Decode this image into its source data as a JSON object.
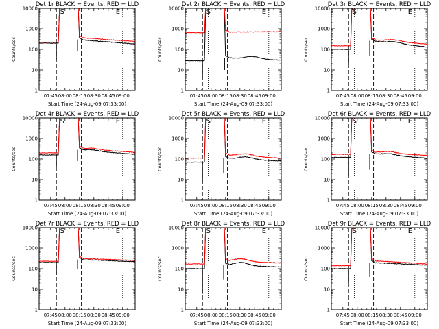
{
  "figure": {
    "start_time_label": "Start Time (24-Aug-09 07:33:00)",
    "time_ticks": [
      "07:45",
      "08:00",
      "08:15",
      "08:30",
      "08:45",
      "09:00"
    ],
    "y_ticks": [
      "1",
      "10",
      "100",
      "1000",
      "10000"
    ],
    "ylabel": "Counts/sec",
    "event_markers": {
      "start": "S",
      "end": "E"
    }
  },
  "colors": {
    "events": "#000000",
    "lld": "#ff0000",
    "axis": "#000000"
  },
  "chart_data": [
    {
      "type": "line",
      "title": "Det 1r BLACK = Events, RED = LLD",
      "xlabel": "Start Time (24-Aug-09 07:33:00)",
      "ylabel": "Counts/sec",
      "x_range_min": [
        0,
        100
      ],
      "ylim": [
        1,
        10000
      ],
      "yscale": "log",
      "eclipse_min": [
        20,
        40
      ],
      "dashed_min": [
        18,
        44
      ],
      "dotted_min": [
        24,
        87
      ],
      "series": [
        {
          "name": "Events",
          "pre": 200,
          "post_start": 300,
          "post_end": 180,
          "bumps": [],
          "spikes": [
            {
              "t": 18,
              "v": 30
            },
            {
              "t": 40,
              "v": 80
            }
          ]
        },
        {
          "name": "LLD",
          "pre": 220,
          "post_start": 380,
          "post_end": 240,
          "bumps": [],
          "spikes": []
        }
      ]
    },
    {
      "type": "line",
      "title": "Det 2r BLACK = Events, RED = LLD",
      "xlabel": "Start Time (24-Aug-09 07:33:00)",
      "ylabel": "Counts/sec",
      "x_range_min": [
        0,
        100
      ],
      "ylim": [
        1,
        10000
      ],
      "yscale": "log",
      "eclipse_min": [
        20,
        40
      ],
      "dashed_min": [
        18,
        44
      ],
      "dotted_min": [
        24,
        87
      ],
      "series": [
        {
          "name": "Events",
          "pre": 28,
          "post_start": 40,
          "post_end": 30,
          "bumps": [
            {
              "t": 70,
              "v": 10
            }
          ],
          "spikes": [
            {
              "t": 18,
              "v": 4
            },
            {
              "t": 41,
              "v": 10
            }
          ]
        },
        {
          "name": "LLD",
          "pre": 650,
          "post_start": 700,
          "post_end": 720,
          "bumps": [],
          "spikes": []
        }
      ]
    },
    {
      "type": "line",
      "title": "Det 3r BLACK = Events, RED = LLD",
      "xlabel": "Start Time (24-Aug-09 07:33:00)",
      "ylabel": "Counts/sec",
      "x_range_min": [
        0,
        100
      ],
      "ylim": [
        1,
        10000
      ],
      "yscale": "log",
      "eclipse_min": [
        20,
        40
      ],
      "dashed_min": [
        18,
        44
      ],
      "dotted_min": [
        24,
        87
      ],
      "series": [
        {
          "name": "Events",
          "pre": 100,
          "post_start": 260,
          "post_end": 130,
          "bumps": [
            {
              "t": 65,
              "v": 40
            }
          ],
          "spikes": [
            {
              "t": 18,
              "v": 20
            },
            {
              "t": 40,
              "v": 50
            }
          ]
        },
        {
          "name": "LLD",
          "pre": 150,
          "post_start": 300,
          "post_end": 180,
          "bumps": [
            {
              "t": 65,
              "v": 50
            }
          ],
          "spikes": []
        }
      ]
    },
    {
      "type": "line",
      "title": "Det 4r BLACK = Events, RED = LLD",
      "xlabel": "Start Time (24-Aug-09 07:33:00)",
      "ylabel": "Counts/sec",
      "x_range_min": [
        0,
        100
      ],
      "ylim": [
        1,
        10000
      ],
      "yscale": "log",
      "eclipse_min": [
        20,
        40
      ],
      "dashed_min": [
        18,
        44
      ],
      "dotted_min": [
        24,
        87
      ],
      "series": [
        {
          "name": "Events",
          "pre": 160,
          "post_start": 280,
          "post_end": 170,
          "bumps": [
            {
              "t": 55,
              "v": 30
            }
          ],
          "spikes": [
            {
              "t": 18,
              "v": 40
            },
            {
              "t": 40,
              "v": 80
            }
          ]
        },
        {
          "name": "LLD",
          "pre": 200,
          "post_start": 330,
          "post_end": 210,
          "bumps": [
            {
              "t": 55,
              "v": 40
            }
          ],
          "spikes": []
        }
      ]
    },
    {
      "type": "line",
      "title": "Det 5r BLACK = Events, RED = LLD",
      "xlabel": "Start Time (24-Aug-09 07:33:00)",
      "ylabel": "Counts/sec",
      "x_range_min": [
        0,
        100
      ],
      "ylim": [
        1,
        10000
      ],
      "yscale": "log",
      "eclipse_min": [
        20,
        40
      ],
      "dashed_min": [
        18,
        44
      ],
      "dotted_min": [
        24,
        87
      ],
      "series": [
        {
          "name": "Events",
          "pre": 70,
          "post_start": 110,
          "post_end": 80,
          "bumps": [
            {
              "t": 63,
              "v": 30
            }
          ],
          "spikes": [
            {
              "t": 18,
              "v": 8
            },
            {
              "t": 40,
              "v": 20
            }
          ]
        },
        {
          "name": "LLD",
          "pre": 110,
          "post_start": 160,
          "post_end": 110,
          "bumps": [
            {
              "t": 63,
              "v": 40
            }
          ],
          "spikes": []
        }
      ]
    },
    {
      "type": "line",
      "title": "Det 6r BLACK = Events, RED = LLD",
      "xlabel": "Start Time (24-Aug-09 07:33:00)",
      "ylabel": "Counts/sec",
      "x_range_min": [
        0,
        100
      ],
      "ylim": [
        1,
        10000
      ],
      "yscale": "log",
      "eclipse_min": [
        20,
        40
      ],
      "dashed_min": [
        18,
        44
      ],
      "dotted_min": [
        24,
        87
      ],
      "series": [
        {
          "name": "Events",
          "pre": 120,
          "post_start": 180,
          "post_end": 110,
          "bumps": [
            {
              "t": 60,
              "v": 30
            }
          ],
          "spikes": [
            {
              "t": 18,
              "v": 15
            },
            {
              "t": 40,
              "v": 30
            }
          ]
        },
        {
          "name": "LLD",
          "pre": 170,
          "post_start": 220,
          "post_end": 150,
          "bumps": [
            {
              "t": 60,
              "v": 40
            }
          ],
          "spikes": []
        }
      ]
    },
    {
      "type": "line",
      "title": "Det 7r BLACK = Events, RED = LLD",
      "xlabel": "Start Time (24-Aug-09 07:33:00)",
      "ylabel": "Counts/sec",
      "x_range_min": [
        0,
        100
      ],
      "ylim": [
        1,
        10000
      ],
      "yscale": "log",
      "eclipse_min": [
        20,
        40
      ],
      "dashed_min": [
        18,
        44
      ],
      "dotted_min": [
        24,
        87
      ],
      "series": [
        {
          "name": "Events",
          "pre": 200,
          "post_start": 280,
          "post_end": 220,
          "bumps": [],
          "spikes": [
            {
              "t": 18,
              "v": 50
            },
            {
              "t": 40,
              "v": 100
            }
          ]
        },
        {
          "name": "LLD",
          "pre": 230,
          "post_start": 320,
          "post_end": 250,
          "bumps": [],
          "spikes": []
        }
      ]
    },
    {
      "type": "line",
      "title": "Det 8r BLACK = Events, RED = LLD",
      "xlabel": "Start Time (24-Aug-09 07:33:00)",
      "ylabel": "Counts/sec",
      "x_range_min": [
        0,
        100
      ],
      "ylim": [
        1,
        10000
      ],
      "yscale": "log",
      "eclipse_min": [
        20,
        40
      ],
      "dashed_min": [
        18,
        44
      ],
      "dotted_min": [
        24,
        87
      ],
      "series": [
        {
          "name": "Events",
          "pre": 100,
          "post_start": 150,
          "post_end": 120,
          "bumps": [
            {
              "t": 58,
              "v": 60
            }
          ],
          "spikes": [
            {
              "t": 18,
              "v": 6
            },
            {
              "t": 40,
              "v": 30
            }
          ]
        },
        {
          "name": "LLD",
          "pre": 170,
          "post_start": 240,
          "post_end": 190,
          "bumps": [
            {
              "t": 58,
              "v": 80
            }
          ],
          "spikes": []
        }
      ]
    },
    {
      "type": "line",
      "title": "Det 9r BLACK = Events, RED = LLD",
      "xlabel": "Start Time (24-Aug-09 07:33:00)",
      "ylabel": "Counts/sec",
      "x_range_min": [
        0,
        100
      ],
      "ylim": [
        1,
        10000
      ],
      "yscale": "log",
      "eclipse_min": [
        20,
        40
      ],
      "dashed_min": [
        18,
        44
      ],
      "dotted_min": [
        24,
        87
      ],
      "series": [
        {
          "name": "Events",
          "pre": 100,
          "post_start": 200,
          "post_end": 150,
          "bumps": [],
          "spikes": [
            {
              "t": 18,
              "v": 20
            },
            {
              "t": 40,
              "v": 40
            }
          ]
        },
        {
          "name": "LLD",
          "pre": 140,
          "post_start": 250,
          "post_end": 170,
          "bumps": [],
          "spikes": []
        }
      ]
    }
  ]
}
